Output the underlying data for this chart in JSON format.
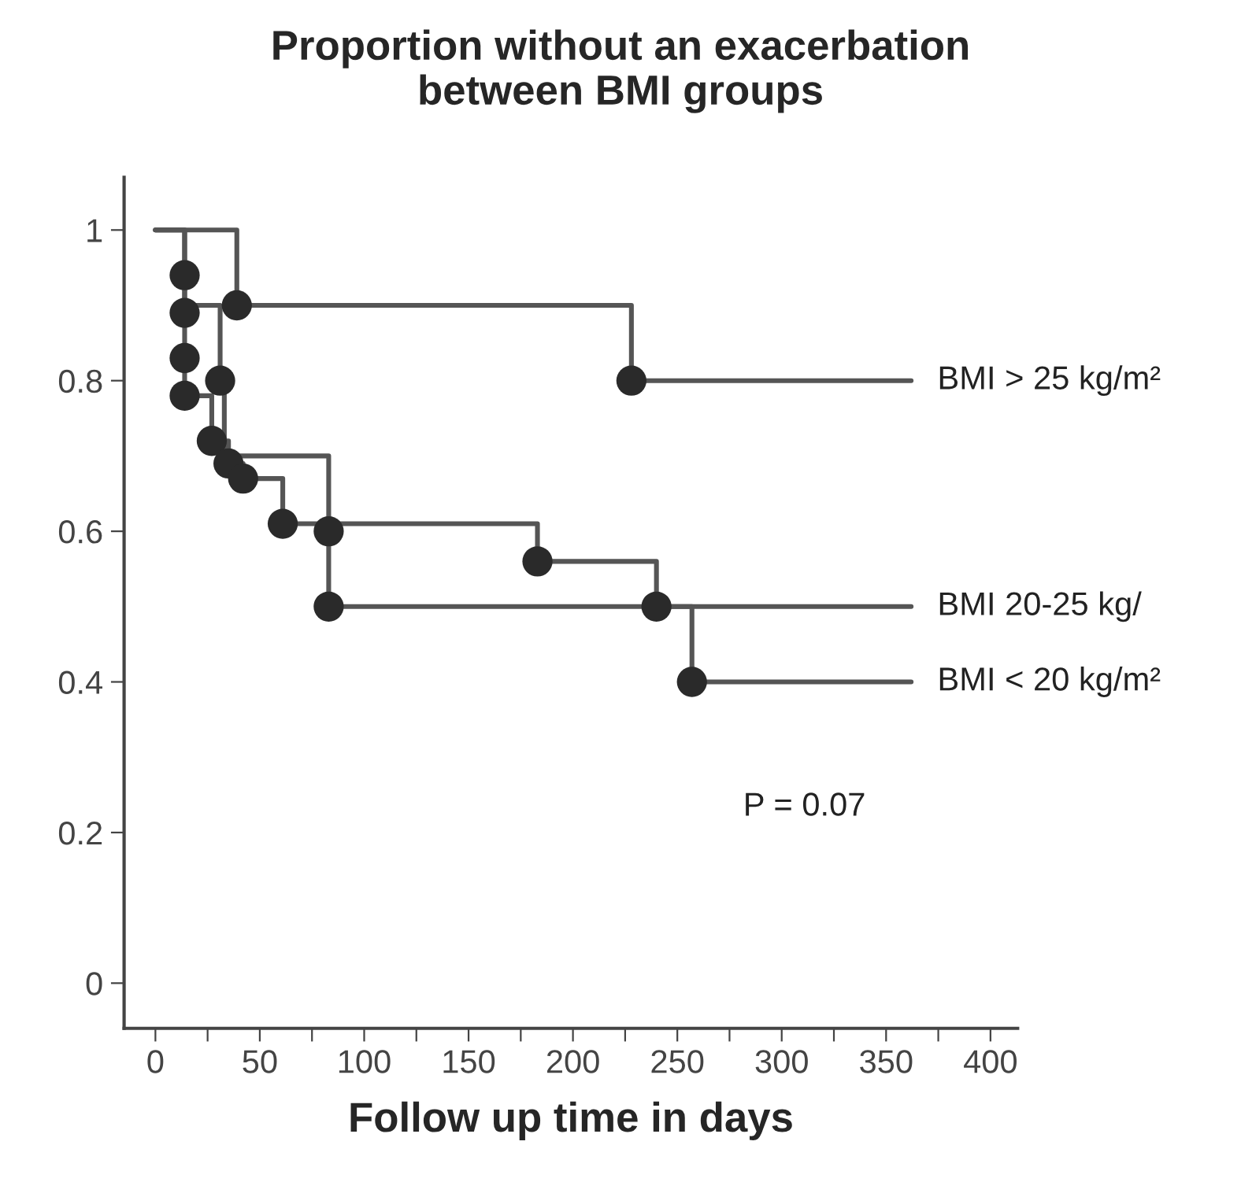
{
  "chart_data": {
    "type": "step",
    "title": "Proportion without an exacerbation\nbetween BMI groups",
    "xlabel": "Follow up time in days",
    "series": [
      {
        "name": "BMI > 25 kg/m²",
        "color": "#555555",
        "x": [
          0,
          39,
          228,
          362
        ],
        "values": [
          1,
          0.9,
          0.8,
          0.8
        ]
      },
      {
        "name": "BMI 20-25 kg/",
        "color": "#555555",
        "x": [
          0,
          14,
          14,
          14,
          14,
          27,
          35,
          42,
          61,
          183,
          240,
          362
        ],
        "values": [
          1,
          0.94,
          0.89,
          0.83,
          0.78,
          0.72,
          0.69,
          0.67,
          0.61,
          0.56,
          0.5,
          0.5
        ]
      },
      {
        "name": "BMI < 20 kg/m²",
        "color": "#555555",
        "x": [
          0,
          14,
          31,
          33,
          83,
          83,
          257,
          362
        ],
        "values": [
          1,
          0.9,
          0.8,
          0.7,
          0.6,
          0.5,
          0.4,
          0.4
        ]
      },
      {
        "type": "scatter",
        "color": "#2a2a2a",
        "marker": "circle",
        "x": [
          39,
          228,
          14,
          14,
          14,
          14,
          27,
          35,
          42,
          61,
          183,
          240,
          31,
          83,
          83,
          257
        ],
        "values": [
          0.9,
          0.8,
          0.94,
          0.89,
          0.83,
          0.78,
          0.72,
          0.69,
          0.67,
          0.61,
          0.56,
          0.5,
          0.8,
          0.6,
          0.5,
          0.4
        ]
      }
    ],
    "xlim": [
      -15,
      413
    ],
    "ylim": [
      -0.06,
      1.07
    ],
    "xticks": [
      0,
      {
        "value": 25,
        "label": null
      },
      50,
      {
        "value": 75,
        "label": null
      },
      100,
      {
        "value": 125,
        "label": null
      },
      150,
      {
        "value": 175,
        "label": null
      },
      200,
      {
        "value": 225,
        "label": null
      },
      250,
      {
        "value": 275,
        "label": null
      },
      300,
      {
        "value": 325,
        "label": null
      },
      350,
      {
        "value": 375,
        "label": null
      },
      400
    ],
    "yticks": [
      0,
      0.2,
      0.4,
      0.6,
      0.8,
      1
    ],
    "annotations": [
      "P = 0.07"
    ],
    "legend": false,
    "grid": false
  }
}
